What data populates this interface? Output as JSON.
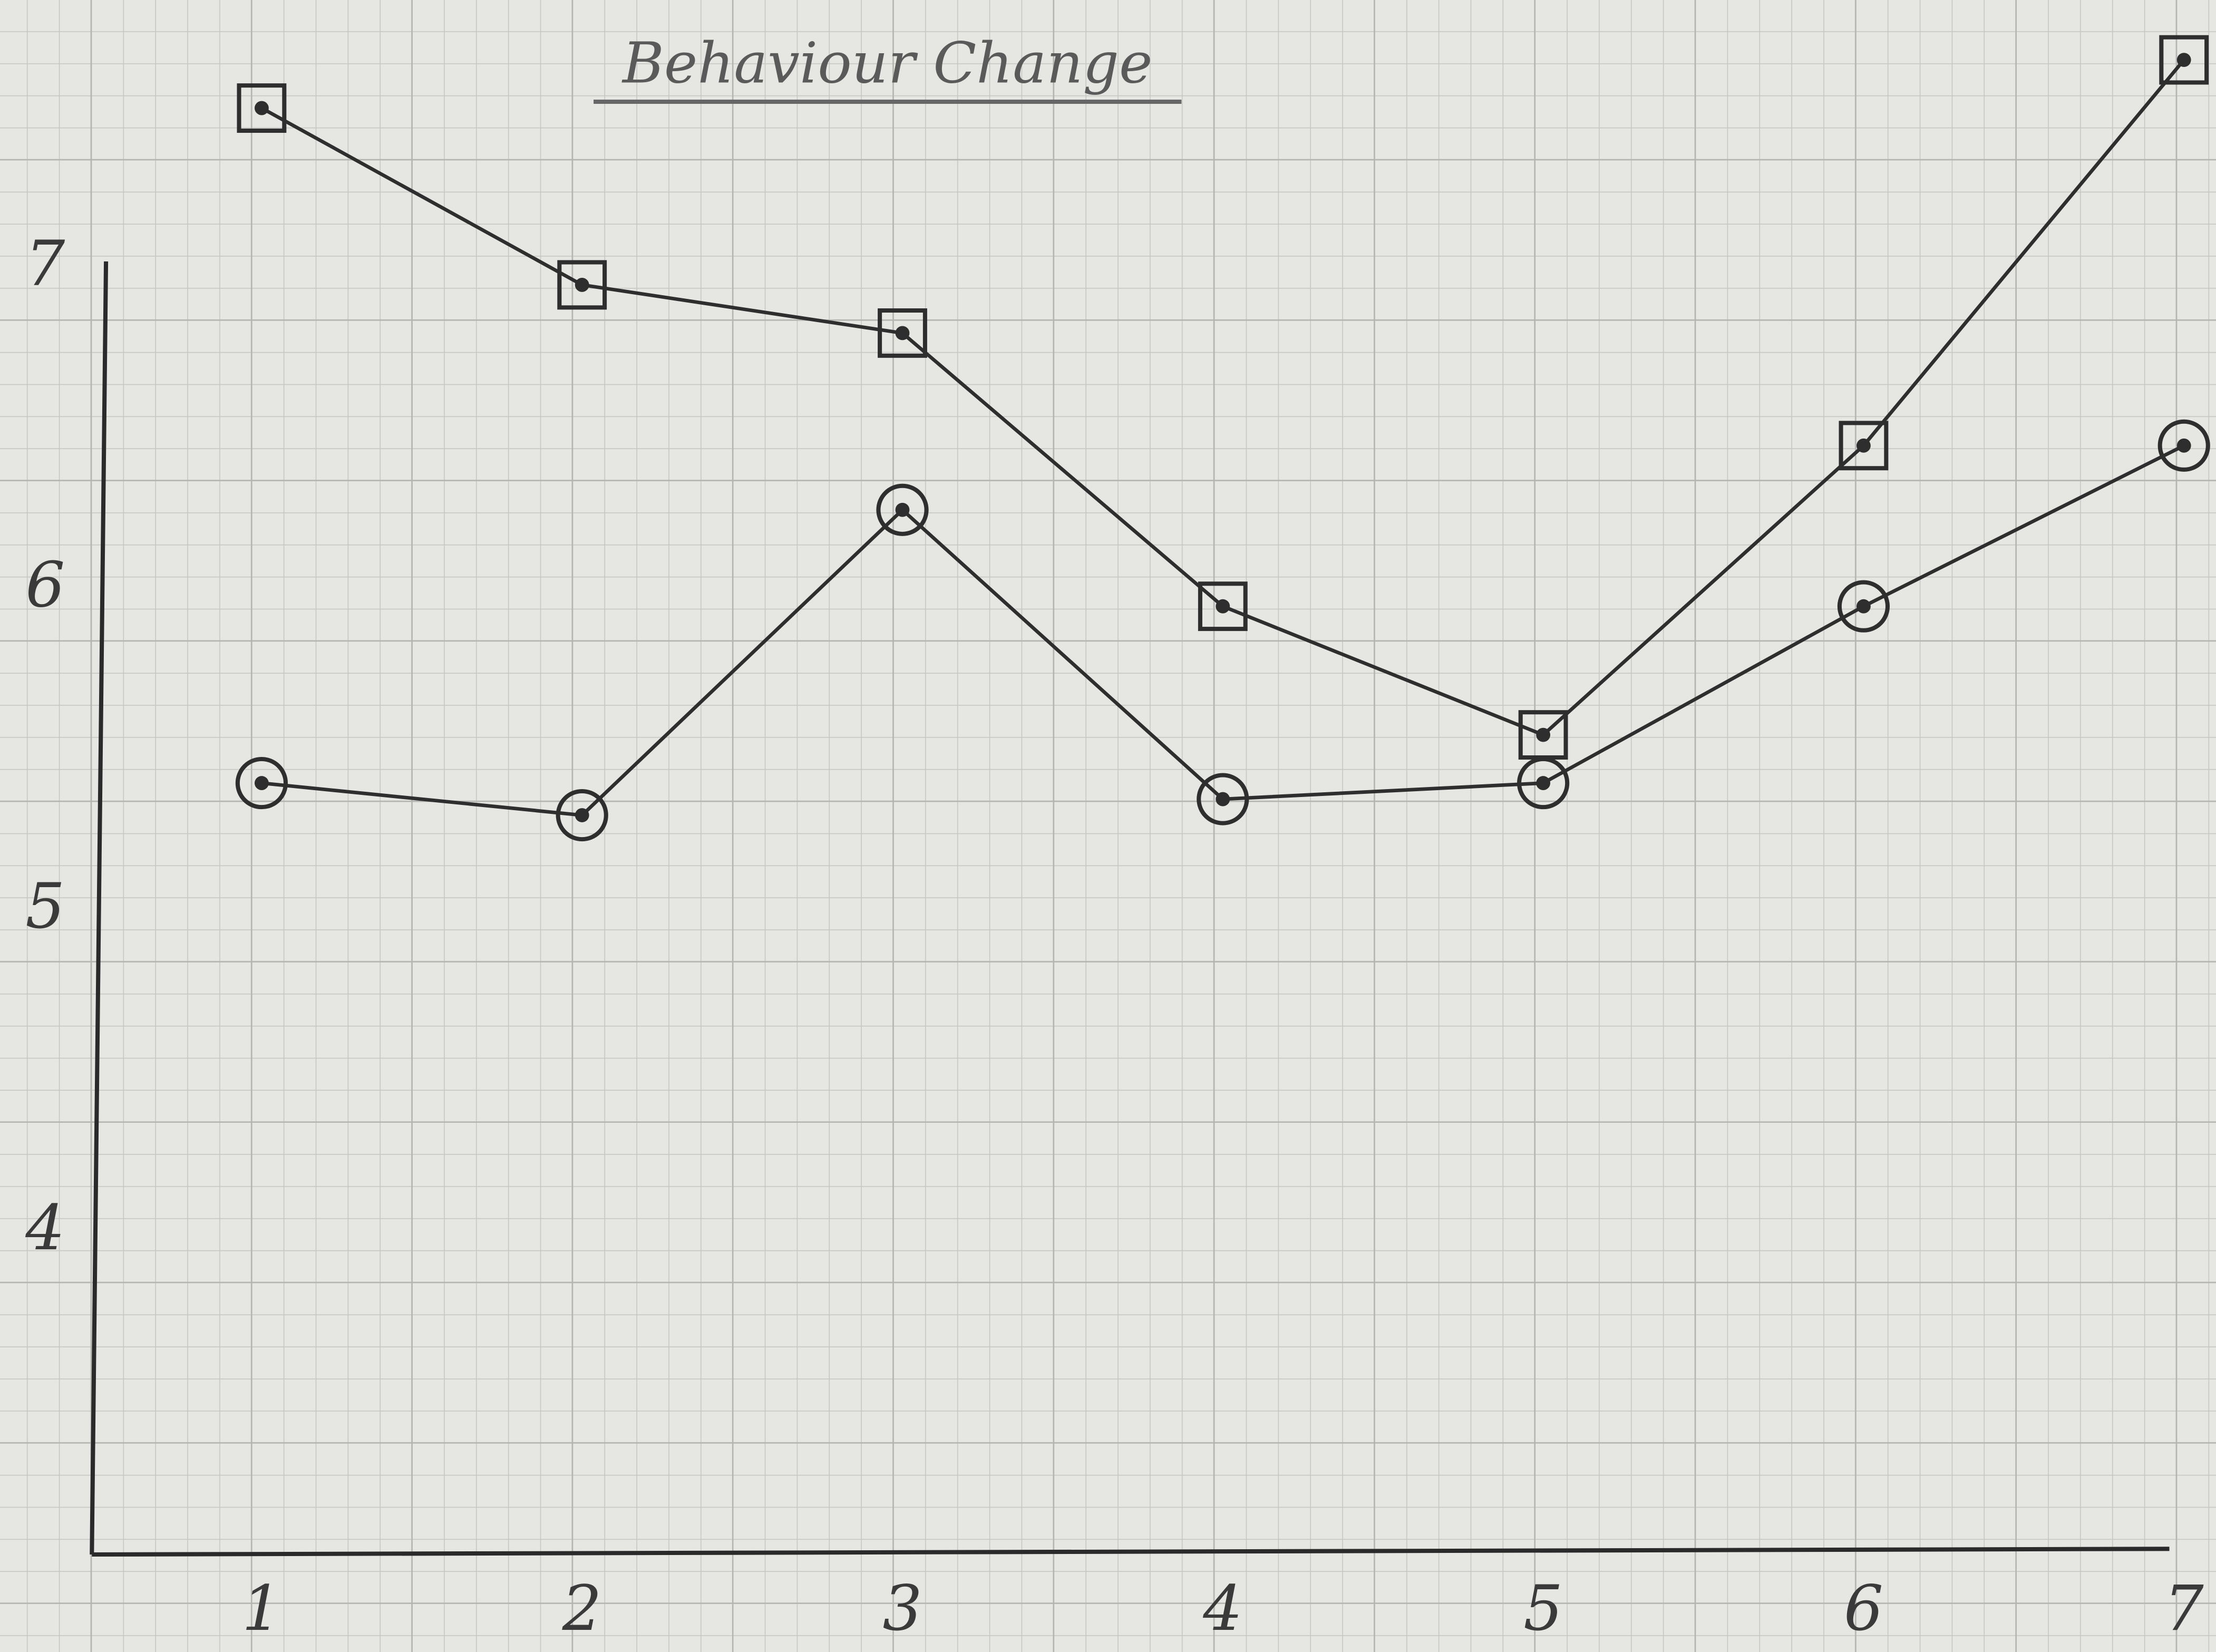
{
  "chart_data": {
    "type": "line",
    "title": "Behaviour Change",
    "x": [
      1,
      2,
      3,
      4,
      5,
      6,
      7
    ],
    "xlim": [
      0.47,
      7.1
    ],
    "xticks": [
      1,
      2,
      3,
      4,
      5,
      6,
      7
    ],
    "ylim": [
      3,
      7.7
    ],
    "yticks": [
      4,
      5,
      6,
      7
    ],
    "grid": false,
    "series": [
      {
        "color": "#2e2e2e",
        "marker": "square",
        "values": [
          7.5,
          6.95,
          6.8,
          5.95,
          5.55,
          6.45,
          7.65
        ]
      },
      {
        "color": "#2e2e2e",
        "marker": "circle",
        "values": [
          5.4,
          5.3,
          6.25,
          5.35,
          5.4,
          5.95,
          6.45
        ]
      }
    ]
  }
}
